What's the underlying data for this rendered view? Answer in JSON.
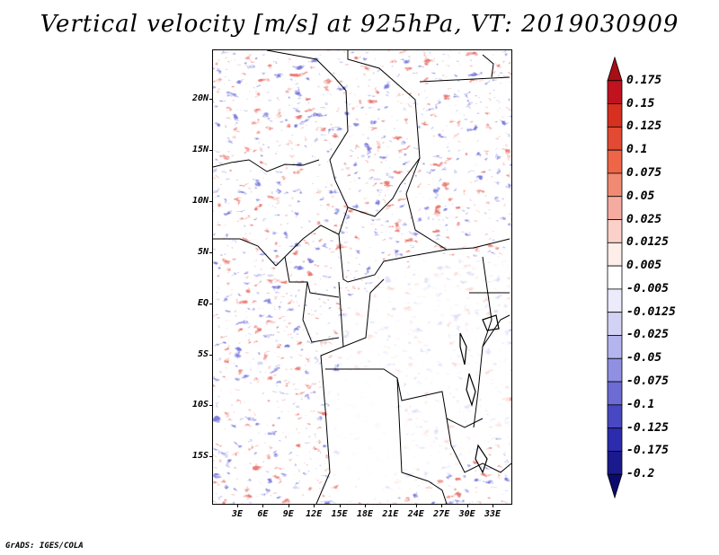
{
  "title": "Vertical velocity [m/s] at 925hPa, VT: 2019030909",
  "footer": "GrADS: IGES/COLA",
  "map": {
    "latitude_labels": [
      "20N",
      "15N",
      "10N",
      "5N",
      "EQ",
      "5S",
      "10S",
      "15S"
    ],
    "longitude_labels": [
      "3E",
      "6E",
      "9E",
      "12E",
      "15E",
      "18E",
      "21E",
      "24E",
      "27E",
      "30E",
      "33E"
    ],
    "field": "vertical-velocity",
    "colors": {
      "positive": "#d73027",
      "negative": "#3a3acf",
      "boundaries": "#000000"
    }
  },
  "colorbar": {
    "labels": [
      "0.175",
      "0.15",
      "0.125",
      "0.1",
      "0.075",
      "0.05",
      "0.025",
      "0.0125",
      "0.005",
      "-0.005",
      "-0.0125",
      "-0.025",
      "-0.05",
      "-0.075",
      "-0.1",
      "-0.125",
      "-0.175",
      "-0.2"
    ],
    "colors": [
      "#a50f15",
      "#c1121f",
      "#d7301f",
      "#e34a33",
      "#ef6548",
      "#f18a73",
      "#f6aba0",
      "#fbd0c9",
      "#fdeeea",
      "#ffffff",
      "#ebebfb",
      "#d2d2f5",
      "#b4b4ee",
      "#9090e2",
      "#6c6cd4",
      "#4848c2",
      "#2c2cae",
      "#1a1a8e",
      "#0b0b6e"
    ]
  }
}
